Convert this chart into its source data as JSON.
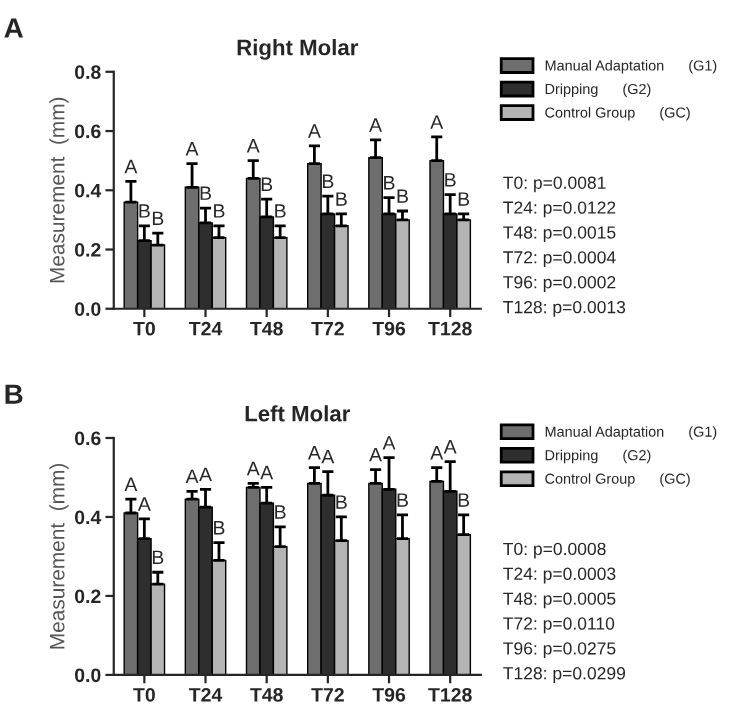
{
  "chart_data": [
    {
      "type": "bar",
      "title": "Right Molar",
      "ylabel": "Measurement  (mm)",
      "categories": [
        "T0",
        "T24",
        "T48",
        "T72",
        "T96",
        "T128"
      ],
      "ylim": [
        0,
        0.8
      ],
      "yticks": [
        {
          "value": 0,
          "label": "0.0"
        },
        0.2,
        0.4,
        0.6,
        0.8
      ],
      "legend": "right",
      "series": [
        {
          "name": "Manual Adaptation      (G1)",
          "color": "#6e6e6e",
          "values": [
            0.36,
            0.41,
            0.44,
            0.49,
            0.51,
            0.5
          ],
          "errors": [
            0.07,
            0.08,
            0.06,
            0.06,
            0.06,
            0.08
          ],
          "value_labels": [
            "A",
            "A",
            "A",
            "A",
            "A",
            "A"
          ]
        },
        {
          "name": "Dripping      (G2)",
          "color": "#2e2e2e",
          "values": [
            0.23,
            0.29,
            0.31,
            0.32,
            0.32,
            0.32
          ],
          "errors": [
            0.05,
            0.05,
            0.06,
            0.06,
            0.055,
            0.065
          ],
          "value_labels": [
            "B",
            "B",
            "B",
            "B",
            "B",
            "B"
          ]
        },
        {
          "name": "Control Group      (GC)",
          "color": "#b4b4b4",
          "values": [
            0.215,
            0.24,
            0.24,
            0.28,
            0.3,
            0.3
          ],
          "errors": [
            0.04,
            0.04,
            0.04,
            0.04,
            0.03,
            0.02
          ],
          "value_labels": [
            "B",
            "B",
            "B",
            "B",
            "B",
            "B"
          ]
        }
      ],
      "annotations": [
        "A",
        "T0: p=0.0081",
        "T24: p=0.0122",
        "T48: p=0.0015",
        "T72: p=0.0004",
        "T96: p=0.0002",
        "T128: p=0.0013"
      ]
    },
    {
      "type": "bar",
      "title": "Left Molar",
      "ylabel": "Measurement  (mm)",
      "categories": [
        "T0",
        "T24",
        "T48",
        "T72",
        "T96",
        "T128"
      ],
      "ylim": [
        0,
        0.6
      ],
      "yticks": [
        {
          "value": 0,
          "label": "0.0"
        },
        0.2,
        0.4,
        0.6
      ],
      "legend": "right",
      "series": [
        {
          "name": "Manual Adaptation      (G1)",
          "color": "#6e6e6e",
          "values": [
            0.41,
            0.445,
            0.475,
            0.485,
            0.485,
            0.49
          ],
          "errors": [
            0.035,
            0.02,
            0.01,
            0.04,
            0.035,
            0.035
          ],
          "value_labels": [
            "A",
            "A",
            "A",
            "A",
            "A",
            "A"
          ]
        },
        {
          "name": "Dripping      (G2)",
          "color": "#2e2e2e",
          "values": [
            0.345,
            0.425,
            0.435,
            0.455,
            0.47,
            0.465
          ],
          "errors": [
            0.05,
            0.045,
            0.04,
            0.06,
            0.08,
            0.075
          ],
          "value_labels": [
            "A",
            "A",
            "A",
            "A",
            "A",
            "A"
          ]
        },
        {
          "name": "Control Group      (GC)",
          "color": "#b4b4b4",
          "values": [
            0.23,
            0.29,
            0.325,
            0.34,
            0.345,
            0.355
          ],
          "errors": [
            0.03,
            0.045,
            0.05,
            0.06,
            0.06,
            0.05
          ],
          "value_labels": [
            "B",
            "B",
            "B",
            "B",
            "B",
            "B"
          ]
        }
      ],
      "annotations": [
        "B",
        "T0: p=0.0008",
        "T24: p=0.0003",
        "T48: p=0.0005",
        "T72: p=0.0110",
        "T96: p=0.0275",
        "T128: p=0.0299"
      ]
    }
  ]
}
